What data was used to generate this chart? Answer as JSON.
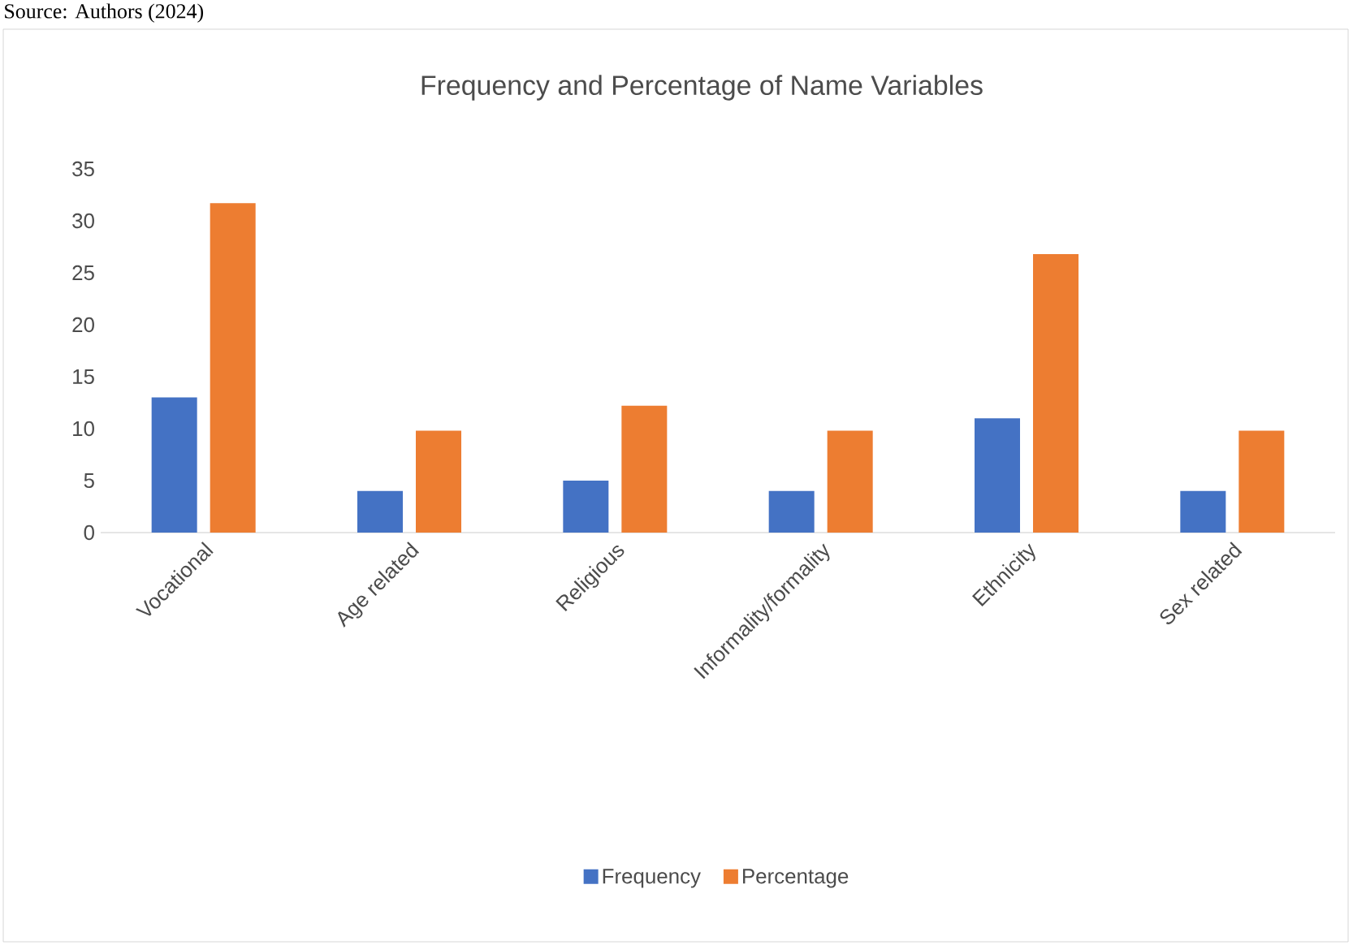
{
  "chart_data": {
    "type": "bar",
    "title": "Frequency and Percentage of Name Variables",
    "categories": [
      "Vocational",
      "Age related",
      "Religious",
      "Informality/formality",
      "Ethnicity",
      "Sex related"
    ],
    "series": [
      {
        "name": "Frequency",
        "color": "#4472c4",
        "values": [
          13,
          4,
          5,
          4,
          11,
          4
        ]
      },
      {
        "name": "Percentage",
        "color": "#ed7d31",
        "values": [
          31.7,
          9.8,
          12.2,
          9.8,
          26.8,
          9.8
        ]
      }
    ],
    "ylim": [
      0,
      35
    ],
    "yticks": [
      0,
      5,
      10,
      15,
      20,
      25,
      30,
      35
    ],
    "legend": "bottom",
    "annotations": [
      "Source: Authors (2024)"
    ]
  }
}
